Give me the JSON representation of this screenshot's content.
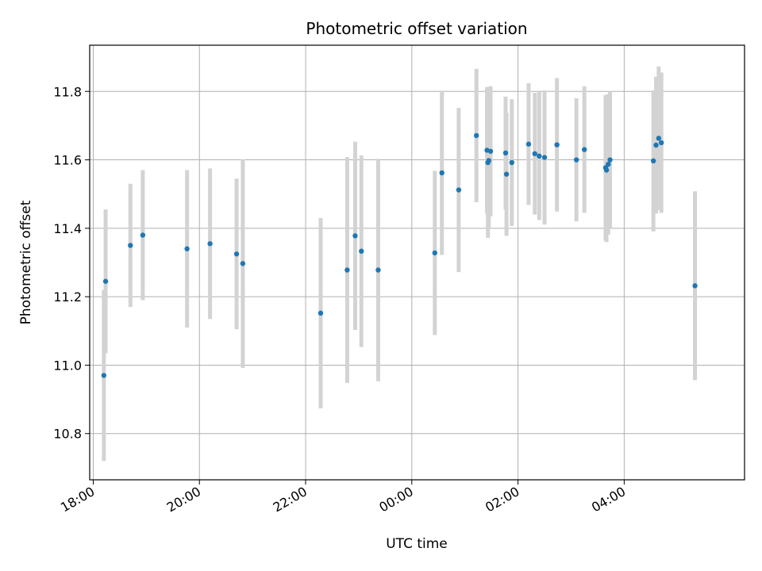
{
  "chart_data": {
    "type": "scatter",
    "title": "Photometric offset variation",
    "xlabel": "UTC time",
    "ylabel": "Photometric offset",
    "x_axis": "time",
    "x_ticks": [
      "18:00",
      "20:00",
      "22:00",
      "00:00",
      "02:00",
      "04:00"
    ],
    "xlim": [
      "17:56",
      "06:16"
    ],
    "y_ticks": [
      "10.8",
      "11.0",
      "11.2",
      "11.4",
      "11.6",
      "11.8"
    ],
    "ylim": [
      10.665,
      11.935
    ],
    "grid": true,
    "colors": {
      "marker": "#1f77b4",
      "errorbar": "#d3d3d3",
      "grid": "#b0b0b0"
    },
    "points": [
      {
        "t": "18:12",
        "y": 10.97,
        "err": 0.25
      },
      {
        "t": "18:14",
        "y": 11.245,
        "err": 0.21
      },
      {
        "t": "18:42",
        "y": 11.35,
        "err": 0.18
      },
      {
        "t": "18:56",
        "y": 11.38,
        "err": 0.19
      },
      {
        "t": "19:46",
        "y": 11.34,
        "err": 0.23
      },
      {
        "t": "20:12",
        "y": 11.355,
        "err": 0.22
      },
      {
        "t": "20:42",
        "y": 11.325,
        "err": 0.22
      },
      {
        "t": "20:49",
        "y": 11.297,
        "err": 0.305
      },
      {
        "t": "22:17",
        "y": 11.152,
        "err": 0.278
      },
      {
        "t": "22:47",
        "y": 11.278,
        "err": 0.33
      },
      {
        "t": "22:56",
        "y": 11.378,
        "err": 0.275
      },
      {
        "t": "23:03",
        "y": 11.333,
        "err": 0.28
      },
      {
        "t": "23:22",
        "y": 11.278,
        "err": 0.325
      },
      {
        "t": "00:26",
        "y": 11.328,
        "err": 0.24
      },
      {
        "t": "00:34",
        "y": 11.562,
        "err": 0.24
      },
      {
        "t": "00:53",
        "y": 11.512,
        "err": 0.24
      },
      {
        "t": "01:13",
        "y": 11.671,
        "err": 0.195
      },
      {
        "t": "01:25",
        "y": 11.628,
        "err": 0.185
      },
      {
        "t": "01:26",
        "y": 11.592,
        "err": 0.22
      },
      {
        "t": "01:27",
        "y": 11.598,
        "err": 0.2
      },
      {
        "t": "01:29",
        "y": 11.625,
        "err": 0.19
      },
      {
        "t": "01:46",
        "y": 11.62,
        "err": 0.165
      },
      {
        "t": "01:47",
        "y": 11.558,
        "err": 0.18
      },
      {
        "t": "01:53",
        "y": 11.592,
        "err": 0.185
      },
      {
        "t": "02:12",
        "y": 11.646,
        "err": 0.178
      },
      {
        "t": "02:19",
        "y": 11.618,
        "err": 0.178
      },
      {
        "t": "02:24",
        "y": 11.611,
        "err": 0.187
      },
      {
        "t": "02:30",
        "y": 11.607,
        "err": 0.196
      },
      {
        "t": "02:44",
        "y": 11.644,
        "err": 0.195
      },
      {
        "t": "03:06",
        "y": 11.6,
        "err": 0.18
      },
      {
        "t": "03:15",
        "y": 11.63,
        "err": 0.185
      },
      {
        "t": "03:39",
        "y": 11.577,
        "err": 0.213
      },
      {
        "t": "03:40",
        "y": 11.57,
        "err": 0.21
      },
      {
        "t": "03:42",
        "y": 11.587,
        "err": 0.205
      },
      {
        "t": "03:44",
        "y": 11.6,
        "err": 0.2
      },
      {
        "t": "04:33",
        "y": 11.597,
        "err": 0.206
      },
      {
        "t": "04:36",
        "y": 11.643,
        "err": 0.2
      },
      {
        "t": "04:39",
        "y": 11.663,
        "err": 0.21
      },
      {
        "t": "04:42",
        "y": 11.65,
        "err": 0.205
      },
      {
        "t": "05:20",
        "y": 11.232,
        "err": 0.276
      }
    ]
  }
}
